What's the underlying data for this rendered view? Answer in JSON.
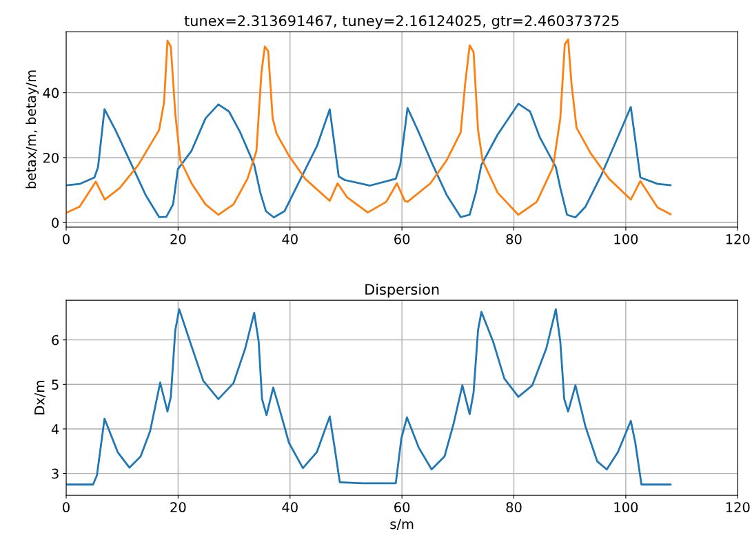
{
  "chart_data": [
    {
      "type": "line",
      "title": "tunex=2.313691467, tuney=2.16124025, gtr=2.460373725",
      "ylabel": "betax/m, betay/m",
      "xlim": [
        0,
        120
      ],
      "xticks": [
        0,
        20,
        40,
        60,
        80,
        100,
        120
      ],
      "ylim": [
        -1.4,
        58.8
      ],
      "yticks": [
        0,
        20,
        40
      ],
      "grid": true,
      "series": [
        {
          "color": "#1f77b4",
          "x": [
            0.1,
            2.4,
            5.05,
            5.7,
            6.85,
            8.8,
            11.7,
            14.2,
            16.6,
            17.9,
            19.1,
            19.95,
            22.4,
            24.9,
            27.2,
            29.1,
            31.1,
            33.6,
            34.7,
            35.7,
            37.1,
            39.0,
            41.9,
            44.8,
            47.1,
            48.7,
            49.8,
            54.3,
            58.9,
            59.7,
            61.0,
            63.0,
            65.5,
            68.0,
            70.5,
            72.1,
            73.2,
            74.2,
            77.1,
            80.8,
            82.9,
            84.6,
            87.5,
            88.3,
            89.5,
            91.0,
            92.8,
            95.7,
            98.6,
            100.9,
            102.6,
            105.7,
            108.0
          ],
          "values": [
            11.5,
            11.9,
            13.9,
            17.1,
            34.9,
            28.5,
            17.8,
            8.5,
            1.7,
            1.8,
            5.6,
            16.4,
            22.1,
            32.1,
            36.4,
            34.2,
            27.8,
            17.8,
            9.2,
            3.5,
            1.6,
            3.5,
            13.5,
            23.5,
            34.9,
            14.2,
            13.1,
            11.4,
            13.5,
            17.8,
            35.3,
            27.8,
            17.8,
            8.5,
            1.7,
            2.4,
            9.2,
            17.8,
            27.1,
            36.6,
            34.2,
            26.4,
            17.1,
            10.7,
            2.4,
            1.6,
            4.9,
            14.9,
            26.4,
            35.6,
            13.9,
            11.9,
            11.5
          ]
        },
        {
          "color": "#ff7f0e",
          "x": [
            0.1,
            2.4,
            5.3,
            6.9,
            9.6,
            12.9,
            16.6,
            17.5,
            18.1,
            18.7,
            19.5,
            20.4,
            22.4,
            24.9,
            27.2,
            29.9,
            32.4,
            34.0,
            34.9,
            35.5,
            36.1,
            36.9,
            37.6,
            39.8,
            42.7,
            47.1,
            48.5,
            50.2,
            53.9,
            57.2,
            59.1,
            60.5,
            61.0,
            65.1,
            68.0,
            70.5,
            71.3,
            72.1,
            72.8,
            73.6,
            74.4,
            77.1,
            80.8,
            84.1,
            87.0,
            88.3,
            89.1,
            89.7,
            90.3,
            91.2,
            93.7,
            97.0,
            100.9,
            102.6,
            105.7,
            108.0
          ],
          "values": [
            3.1,
            4.9,
            12.6,
            7.1,
            10.7,
            17.8,
            28.5,
            37.1,
            56.0,
            54.2,
            33.5,
            19.2,
            12.1,
            5.6,
            2.4,
            5.6,
            13.5,
            22.1,
            46.4,
            54.2,
            52.8,
            32.1,
            27.4,
            20.6,
            13.5,
            6.7,
            12.1,
            7.8,
            3.1,
            6.4,
            12.1,
            6.7,
            6.4,
            12.1,
            19.2,
            27.8,
            42.8,
            54.6,
            52.5,
            28.5,
            19.2,
            9.2,
            2.4,
            6.4,
            17.1,
            32.1,
            54.9,
            56.4,
            42.8,
            29.2,
            21.4,
            13.5,
            7.1,
            12.8,
            4.6,
            2.6
          ]
        }
      ]
    },
    {
      "type": "line",
      "title": "Dispersion",
      "xlabel": "s/m",
      "ylabel": "Dx/m",
      "xlim": [
        0,
        120
      ],
      "xticks": [
        0,
        20,
        40,
        60,
        80,
        100,
        120
      ],
      "ylim": [
        2.51,
        6.89
      ],
      "yticks": [
        3,
        4,
        5,
        6
      ],
      "grid": true,
      "series": [
        {
          "color": "#1f77b4",
          "x": [
            0.1,
            4.8,
            5.5,
            6.85,
            9.2,
            11.3,
            13.3,
            15.0,
            16.8,
            18.1,
            18.7,
            19.5,
            20.2,
            22.4,
            24.5,
            27.2,
            29.9,
            32.0,
            33.6,
            34.4,
            35.0,
            35.8,
            37.0,
            38.2,
            39.8,
            42.3,
            44.8,
            47.1,
            47.9,
            48.9,
            53.1,
            58.9,
            59.9,
            60.9,
            63.0,
            65.3,
            67.6,
            69.2,
            70.8,
            72.1,
            72.8,
            73.6,
            74.2,
            76.3,
            78.3,
            80.8,
            83.3,
            85.8,
            87.5,
            88.3,
            89.0,
            89.7,
            91.0,
            92.8,
            94.9,
            96.6,
            98.6,
            100.9,
            101.7,
            102.8,
            108.0
          ],
          "values": [
            2.75,
            2.75,
            2.96,
            4.23,
            3.48,
            3.13,
            3.38,
            3.95,
            5.04,
            4.39,
            4.72,
            6.22,
            6.69,
            5.86,
            5.08,
            4.67,
            5.03,
            5.81,
            6.61,
            5.96,
            4.67,
            4.31,
            4.93,
            4.41,
            3.69,
            3.12,
            3.48,
            4.28,
            3.64,
            2.8,
            2.78,
            2.78,
            3.79,
            4.26,
            3.58,
            3.09,
            3.38,
            4.1,
            4.98,
            4.33,
            4.82,
            6.22,
            6.63,
            5.96,
            5.13,
            4.72,
            4.98,
            5.81,
            6.69,
            5.96,
            4.67,
            4.39,
            4.98,
            4.05,
            3.27,
            3.09,
            3.48,
            4.18,
            3.69,
            2.75,
            2.75
          ]
        }
      ]
    }
  ]
}
